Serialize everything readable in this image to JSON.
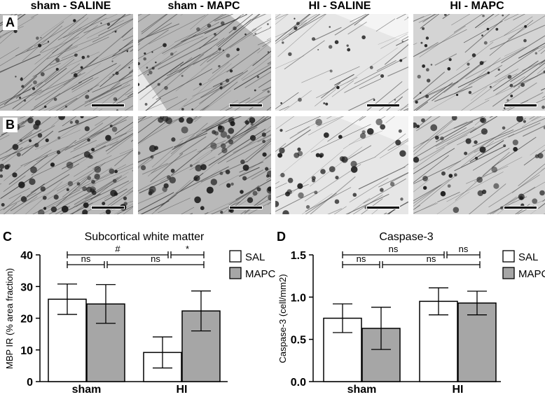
{
  "micrographs": {
    "column_titles": [
      "sham - SALINE",
      "sham - MAPC",
      "HI - SALINE",
      "HI - MAPC"
    ],
    "row_labels": [
      "A",
      "B"
    ]
  },
  "chart_data": [
    {
      "panel_label": "C",
      "type": "bar",
      "title": "Subcortical white matter",
      "ylabel": "MBP IR (% area fraction)",
      "xlabel": "",
      "ylim": [
        0,
        40
      ],
      "yticks": [
        "0",
        "10",
        "20",
        "30",
        "40"
      ],
      "categories": [
        "sham",
        "HI"
      ],
      "series": [
        {
          "name": "SAL",
          "values": [
            26,
            9.2
          ],
          "errors": [
            4.8,
            4.9
          ],
          "color": "#ffffff"
        },
        {
          "name": "MAPC",
          "values": [
            24.5,
            22.3
          ],
          "errors": [
            6.1,
            6.3
          ],
          "color": "#a6a6a6"
        }
      ],
      "comparisons": [
        {
          "label": "#",
          "from": "sham",
          "to": "HI-SAL"
        },
        {
          "label": "*",
          "from": "HI-SAL",
          "to": "HI-MAPC"
        },
        {
          "label": "ns",
          "from": "sham-SAL",
          "to": "sham-MAPC"
        },
        {
          "label": "ns",
          "from": "sham-MAPC",
          "to": "HI"
        }
      ],
      "legend_position": "top-right"
    },
    {
      "panel_label": "D",
      "type": "bar",
      "title": "Caspase-3",
      "ylabel": "Caspase-3 (cell/mm2)",
      "xlabel": "",
      "ylim": [
        0,
        1.5
      ],
      "yticks": [
        "0.0",
        "0.5",
        "1.0",
        "1.5"
      ],
      "categories": [
        "sham",
        "HI"
      ],
      "series": [
        {
          "name": "SAL",
          "values": [
            0.75,
            0.95
          ],
          "errors": [
            0.17,
            0.16
          ],
          "color": "#ffffff"
        },
        {
          "name": "MAPC",
          "values": [
            0.63,
            0.93
          ],
          "errors": [
            0.25,
            0.14
          ],
          "color": "#a6a6a6"
        }
      ],
      "comparisons": [
        {
          "label": "ns",
          "from": "sham",
          "to": "HI-SAL"
        },
        {
          "label": "ns",
          "from": "HI-SAL",
          "to": "HI-MAPC"
        },
        {
          "label": "ns",
          "from": "sham-SAL",
          "to": "sham-MAPC"
        },
        {
          "label": "ns",
          "from": "sham-MAPC",
          "to": "HI"
        }
      ],
      "legend_position": "top-right"
    }
  ]
}
